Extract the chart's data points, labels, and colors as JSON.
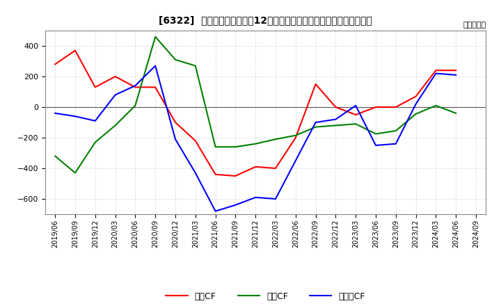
{
  "title": "[6322]  キャッシュフローの12か月移動合計の対前年同期増減額の推移",
  "ylabel": "（百万円）",
  "ylim": [
    -700,
    500
  ],
  "yticks": [
    -600,
    -400,
    -200,
    0,
    200,
    400
  ],
  "legend_labels": [
    "営業CF",
    "投資CF",
    "フリーCF"
  ],
  "colors": [
    "#ff0000",
    "#008000",
    "#0000ff"
  ],
  "x_labels": [
    "2019/06",
    "2019/09",
    "2019/12",
    "2020/03",
    "2020/06",
    "2020/09",
    "2020/12",
    "2021/03",
    "2021/06",
    "2021/09",
    "2021/12",
    "2022/03",
    "2022/06",
    "2022/09",
    "2022/12",
    "2023/03",
    "2023/06",
    "2023/09",
    "2023/12",
    "2024/03",
    "2024/06",
    "2024/09"
  ],
  "series": {
    "営業CF": [
      280,
      370,
      130,
      200,
      130,
      130,
      -100,
      -220,
      -440,
      -450,
      -390,
      -400,
      -200,
      150,
      0,
      -50,
      0,
      0,
      70,
      240,
      240,
      null
    ],
    "投資CF": [
      -320,
      -430,
      -230,
      -120,
      10,
      460,
      310,
      270,
      -260,
      -260,
      -240,
      -210,
      -185,
      -130,
      -120,
      -110,
      -175,
      -155,
      -45,
      10,
      -40,
      null
    ],
    "フリーCF": [
      -40,
      -60,
      -90,
      80,
      140,
      270,
      -210,
      -430,
      -680,
      -640,
      -590,
      -600,
      -350,
      -100,
      -80,
      10,
      -250,
      -240,
      20,
      220,
      210,
      null
    ]
  },
  "background_color": "#ffffff",
  "grid_color": "#cccccc",
  "grid_style": ":",
  "spine_color": "#888888"
}
